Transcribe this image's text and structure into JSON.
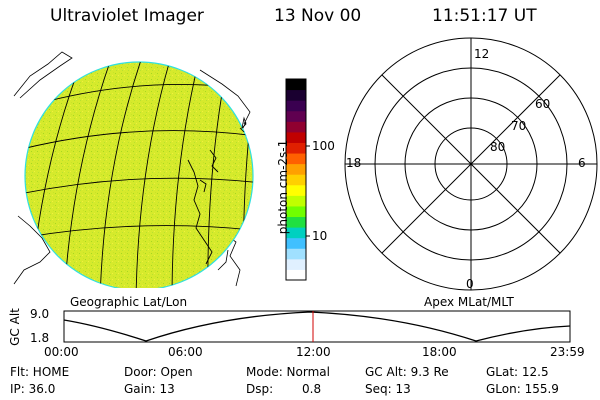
{
  "header": {
    "title": "Ultraviolet Imager",
    "date": "13 Nov 00",
    "time": "11:51:17 UT"
  },
  "colorbar": {
    "label": "photon cm-2s-1",
    "ticks": [
      "100",
      "10"
    ],
    "colors": [
      "#000000",
      "#1a0030",
      "#3a0050",
      "#600050",
      "#900030",
      "#c00000",
      "#e02000",
      "#ff6000",
      "#ffa000",
      "#ffd000",
      "#ffff00",
      "#c0ff00",
      "#70ff00",
      "#20e040",
      "#00d0c0",
      "#40c0ff",
      "#a0e0ff",
      "#e0f0ff",
      "#ffffff"
    ]
  },
  "left_panel": {
    "caption": "Geographic Lat/Lon",
    "fill": "#d8ec2a",
    "rim": "#30e0e0"
  },
  "polar_plot": {
    "caption": "Apex MLat/MLT",
    "mlt_labels": [
      "12",
      "18",
      "6",
      "0"
    ],
    "mlat_labels": [
      "60",
      "70",
      "80"
    ]
  },
  "altitude_plot": {
    "ylabel": "GC Alt",
    "ymax": "9.0",
    "ymin": "1.8",
    "x_ticks": [
      "00:00",
      "06:00",
      "12:00",
      "18:00",
      "23:59"
    ],
    "marker_color": "#d00000"
  },
  "status": {
    "flt": "Flt: HOME",
    "ip": "IP: 36.0",
    "door": "Door: Open",
    "gain": "Gain: 13",
    "mode": "Mode: Normal",
    "dsp_label": "Dsp:",
    "dsp_value": "0.8",
    "gc_alt": "GC Alt: 9.3 Re",
    "seq": "Seq: 13",
    "glat": "GLat: 12.5",
    "glon": "GLon: 155.9"
  }
}
